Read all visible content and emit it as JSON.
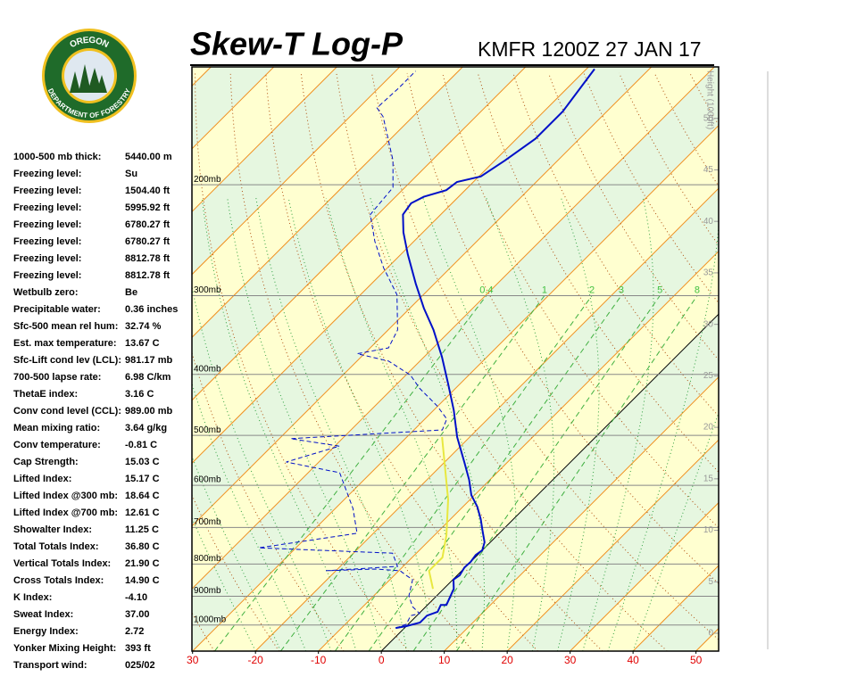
{
  "logo": {
    "top": "OREGON",
    "bottom": "DEPARTMENT OF FORESTRY"
  },
  "header": {
    "title": "Skew-T Log-P",
    "station": "KMFR 1200Z 27 JAN 17"
  },
  "stats": [
    {
      "label": "1000-500 mb thick:",
      "value": "5440.00 m"
    },
    {
      "label": "Freezing level:",
      "value": "Su"
    },
    {
      "label": "Freezing level:",
      "value": "1504.40 ft"
    },
    {
      "label": "Freezing level:",
      "value": "5995.92 ft"
    },
    {
      "label": "Freezing level:",
      "value": "6780.27 ft"
    },
    {
      "label": "Freezing level:",
      "value": "6780.27 ft"
    },
    {
      "label": "Freezing level:",
      "value": "8812.78 ft"
    },
    {
      "label": "Freezing level:",
      "value": "8812.78 ft"
    },
    {
      "label": "Wetbulb zero:",
      "value": "Be"
    },
    {
      "label": "Precipitable water:",
      "value": "0.36 inches"
    },
    {
      "label": "Sfc-500 mean rel hum:",
      "value": "32.74 %"
    },
    {
      "label": "Est. max temperature:",
      "value": "13.67 C"
    },
    {
      "label": "Sfc-Lift cond lev (LCL):",
      "value": "981.17 mb"
    },
    {
      "label": "700-500 lapse rate:",
      "value": "6.98 C/km"
    },
    {
      "label": "ThetaE index:",
      "value": "3.16 C"
    },
    {
      "label": "Conv cond level (CCL):",
      "value": "989.00 mb"
    },
    {
      "label": "Mean mixing ratio:",
      "value": "3.64 g/kg"
    },
    {
      "label": "Conv temperature:",
      "value": "-0.81 C"
    },
    {
      "label": "Cap Strength:",
      "value": "15.03 C"
    },
    {
      "label": "Lifted Index:",
      "value": "15.17 C"
    },
    {
      "label": "Lifted Index @300 mb:",
      "value": "18.64 C"
    },
    {
      "label": "Lifted Index @700 mb:",
      "value": "12.61 C"
    },
    {
      "label": "Showalter Index:",
      "value": "11.25 C"
    },
    {
      "label": "Total Totals Index:",
      "value": "36.80 C"
    },
    {
      "label": "Vertical Totals Index:",
      "value": "21.90 C"
    },
    {
      "label": "Cross Totals Index:",
      "value": "14.90 C"
    },
    {
      "label": "K Index:",
      "value": "-4.10"
    },
    {
      "label": "Sweat Index:",
      "value": "37.00"
    },
    {
      "label": "Energy Index:",
      "value": "2.72"
    },
    {
      "label": "Yonker Mixing Height:",
      "value": "393 ft"
    },
    {
      "label": "Transport wind:",
      "value": "025/02"
    }
  ],
  "chart_data": {
    "type": "skew-t",
    "xlim": [
      -30.1,
      53.6
    ],
    "xticks": [
      {
        "value": -30,
        "label": "30"
      },
      -20,
      -10,
      0,
      10,
      20,
      30,
      40,
      50
    ],
    "ylim": [
      1100,
      130
    ],
    "log_y": true,
    "yticks": [
      {
        "value": 200,
        "label": "200mb"
      },
      {
        "value": 300,
        "label": "300mb"
      },
      {
        "value": 400,
        "label": "400mb"
      },
      {
        "value": 500,
        "label": "500mb"
      },
      {
        "value": 600,
        "label": "600mb"
      },
      {
        "value": 700,
        "label": "700mb"
      },
      {
        "value": 800,
        "label": "800mb"
      },
      {
        "value": 900,
        "label": "900mb"
      },
      {
        "value": 1000,
        "label": "1000mb"
      }
    ],
    "y2label": "Height (1000ft)",
    "y2lim": [
      -1.73,
      55.0
    ],
    "y2ticks": [
      0,
      5,
      10,
      15,
      20,
      25,
      30,
      35,
      40,
      45,
      50
    ],
    "mixing_ratio_lines": [
      0.4,
      1,
      2,
      3,
      5,
      8
    ],
    "series": [
      {
        "color": "#0010c8",
        "dashed": false,
        "pressure": [
          1011,
          1004,
          991,
          966,
          953,
          929,
          929,
          876,
          847,
          834,
          810,
          794,
          774,
          761,
          739,
          708,
          679,
          649,
          622,
          588,
          551,
          503,
          456,
          414,
          375,
          340,
          314,
          287,
          258,
          238,
          223,
          214,
          209,
          204,
          198,
          194,
          183,
          169,
          153,
          131
        ],
        "values": [
          -1.4,
          0.0,
          1.6,
          1.6,
          2.7,
          2.1,
          3.0,
          1.6,
          0.1,
          0.4,
          -0.1,
          0.0,
          -0.3,
          0.0,
          -0.9,
          -3.1,
          -5.2,
          -7.7,
          -10.5,
          -13.3,
          -16.9,
          -22.0,
          -26.8,
          -31.9,
          -37.2,
          -42.8,
          -47.8,
          -53.0,
          -58.9,
          -63.1,
          -66.0,
          -66.5,
          -65.5,
          -63.0,
          -62.6,
          -59.7,
          -58.4,
          -57.0,
          -57.0,
          -58.7
        ]
      },
      {
        "color": "#0010c8",
        "dashed": true,
        "pressure": [
          1011,
          997,
          966,
          959,
          935,
          899,
          847,
          834,
          820,
          815,
          820,
          807,
          769,
          754,
          715,
          653,
          573,
          551,
          520,
          506,
          490,
          471,
          449,
          421,
          401,
          381,
          371,
          363,
          340,
          299,
          271,
          246,
          223,
          202,
          183,
          156,
          151,
          141,
          132
        ],
        "values": [
          -1.4,
          -0.3,
          -1.0,
          0.1,
          -2.1,
          -4.4,
          -6.4,
          -8.1,
          -9.8,
          -14.0,
          -21.6,
          -10.9,
          -13.8,
          -35.9,
          -22.6,
          -27.2,
          -35.0,
          -45.2,
          -39.3,
          -48.2,
          -25.5,
          -26.5,
          -30.1,
          -35.7,
          -39.3,
          -45.0,
          -51.1,
          -47.1,
          -48.5,
          -54.2,
          -60.6,
          -66.2,
          -71.2,
          -71.9,
          -76.2,
          -84.7,
          -87.1,
          -86.8,
          -86.8
        ]
      },
      {
        "color": "#e8e840",
        "dashed": false,
        "pressure": [
          876,
          820,
          781,
          720,
          632,
          555,
          503
        ],
        "values": [
          -1.7,
          -5.2,
          -5.2,
          -8.1,
          -13.5,
          -19.7,
          -24.4
        ]
      }
    ]
  }
}
